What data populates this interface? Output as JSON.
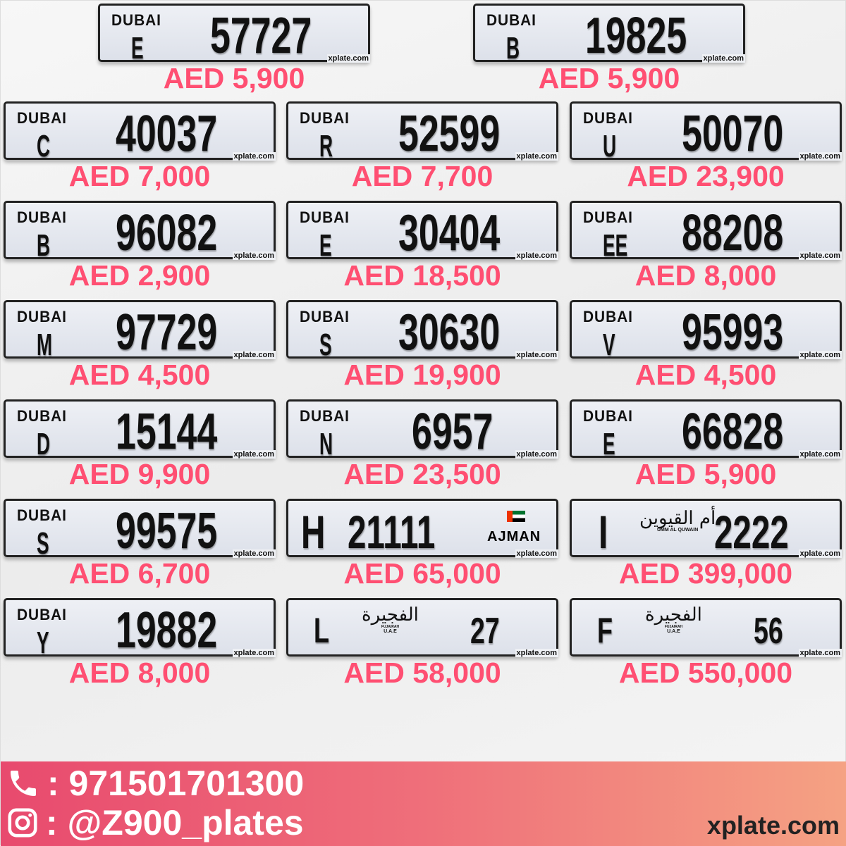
{
  "plates": [
    {
      "type": "dubai",
      "emirate": "DUBAI",
      "code": "E",
      "number": "57727",
      "price": "AED 5,900",
      "watermark": "xplate.com"
    },
    {
      "type": "dubai",
      "emirate": "DUBAI",
      "code": "B",
      "number": "19825",
      "price": "AED 5,900",
      "watermark": "xplate.com"
    },
    {
      "type": "dubai",
      "emirate": "DUBAI",
      "code": "C",
      "number": "40037",
      "price": "AED 7,000",
      "watermark": "xplate.com"
    },
    {
      "type": "dubai",
      "emirate": "DUBAI",
      "code": "R",
      "number": "52599",
      "price": "AED 7,700",
      "watermark": "xplate.com"
    },
    {
      "type": "dubai",
      "emirate": "DUBAI",
      "code": "U",
      "number": "50070",
      "price": "AED 23,900",
      "watermark": "xplate.com"
    },
    {
      "type": "dubai",
      "emirate": "DUBAI",
      "code": "B",
      "number": "96082",
      "price": "AED 2,900",
      "watermark": "xplate.com"
    },
    {
      "type": "dubai",
      "emirate": "DUBAI",
      "code": "E",
      "number": "30404",
      "price": "AED 18,500",
      "watermark": "xplate.com"
    },
    {
      "type": "dubai",
      "emirate": "DUBAI",
      "code": "EE",
      "number": "88208",
      "price": "AED 8,000",
      "watermark": "xplate.com"
    },
    {
      "type": "dubai",
      "emirate": "DUBAI",
      "code": "M",
      "number": "97729",
      "price": "AED 4,500",
      "watermark": "xplate.com"
    },
    {
      "type": "dubai",
      "emirate": "DUBAI",
      "code": "S",
      "number": "30630",
      "price": "AED 19,900",
      "watermark": "xplate.com"
    },
    {
      "type": "dubai",
      "emirate": "DUBAI",
      "code": "V",
      "number": "95993",
      "price": "AED 4,500",
      "watermark": "xplate.com"
    },
    {
      "type": "dubai",
      "emirate": "DUBAI",
      "code": "D",
      "number": "15144",
      "price": "AED 9,900",
      "watermark": "xplate.com"
    },
    {
      "type": "dubai",
      "emirate": "DUBAI",
      "code": "N",
      "number": "6957",
      "price": "AED 23,500",
      "watermark": "xplate.com"
    },
    {
      "type": "dubai",
      "emirate": "DUBAI",
      "code": "E",
      "number": "66828",
      "price": "AED 5,900",
      "watermark": "xplate.com"
    },
    {
      "type": "dubai",
      "emirate": "DUBAI",
      "code": "S",
      "number": "99575",
      "price": "AED 6,700",
      "watermark": "xplate.com"
    },
    {
      "type": "ajman",
      "emirate": "AJMAN",
      "code": "H",
      "number": "21111",
      "price": "AED 65,000",
      "watermark": "xplate.com"
    },
    {
      "type": "uaq",
      "emirate": "UMM AL QUWAIN",
      "emirate_ar": "أم القيوين",
      "code": "I",
      "number": "2222",
      "price": "AED 399,000",
      "watermark": "xplate.com"
    },
    {
      "type": "dubai",
      "emirate": "DUBAI",
      "code": "Y",
      "number": "19882",
      "price": "AED 8,000",
      "watermark": "xplate.com"
    },
    {
      "type": "fujairah",
      "emirate": "FUJAIRAH",
      "emirate_ar": "الفجيرة",
      "country": "U.A.E",
      "code": "L",
      "number": "27",
      "price": "AED 58,000",
      "watermark": "xplate.com"
    },
    {
      "type": "fujairah",
      "emirate": "FUJAIRAH",
      "emirate_ar": "الفجيرة",
      "country": "U.A.E",
      "code": "F",
      "number": "56",
      "price": "AED 550,000",
      "watermark": "xplate.com"
    }
  ],
  "footer": {
    "phone_icon": "phone-icon",
    "phone": ": 971501701300",
    "instagram_icon": "instagram-icon",
    "instagram": ": @Z900_plates",
    "site": "xplate.com"
  },
  "colors": {
    "price": "#ff4f72",
    "footer_start": "#e84a6e",
    "footer_end": "#f5a283"
  }
}
